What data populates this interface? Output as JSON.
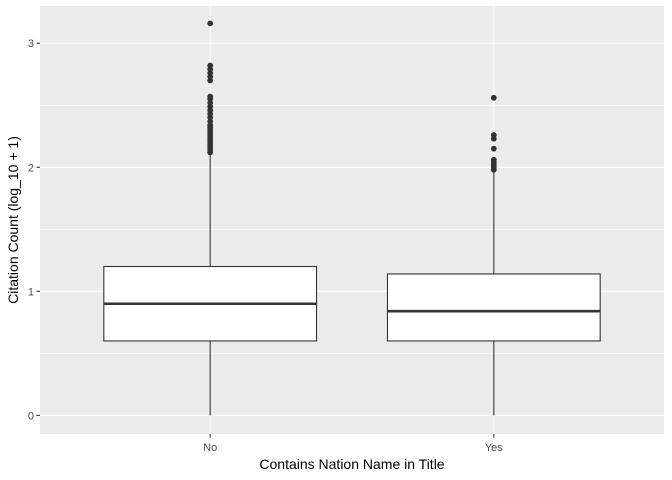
{
  "chart_data": {
    "type": "box",
    "title": "",
    "xlabel": "Contains Nation Name in Title",
    "ylabel": "Citation Count (log_10 + 1)",
    "categories": [
      "No",
      "Yes"
    ],
    "ylim": [
      -0.15,
      3.3
    ],
    "yticks": [
      0,
      1,
      2,
      3
    ],
    "grid": true,
    "boxes": [
      {
        "category": "No",
        "whisker_low": 0,
        "q1": 0.6,
        "median": 0.9,
        "q3": 1.2,
        "whisker_high": 2.1,
        "outliers": [
          2.12,
          2.14,
          2.16,
          2.18,
          2.2,
          2.22,
          2.24,
          2.26,
          2.28,
          2.3,
          2.32,
          2.34,
          2.37,
          2.4,
          2.43,
          2.46,
          2.49,
          2.52,
          2.55,
          2.57,
          2.7,
          2.73,
          2.76,
          2.79,
          2.82,
          3.16
        ]
      },
      {
        "category": "Yes",
        "whisker_low": 0,
        "q1": 0.6,
        "median": 0.84,
        "q3": 1.14,
        "whisker_high": 1.97,
        "outliers": [
          1.98,
          2.0,
          2.02,
          2.04,
          2.06,
          2.15,
          2.23,
          2.26,
          2.56
        ]
      }
    ],
    "colors": {
      "panel_background": "#ebebeb",
      "grid_major": "#ffffff",
      "box_fill": "#ffffff",
      "box_line": "#333333",
      "axis_text": "#4d4d4d",
      "axis_title": "#000000"
    }
  }
}
